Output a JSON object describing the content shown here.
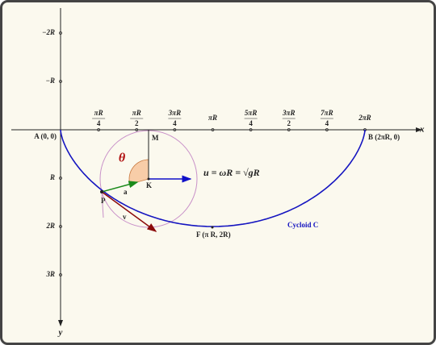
{
  "x_axis": {
    "label": "x",
    "ticks": [
      {
        "num": "πR",
        "den": "4"
      },
      {
        "num": "πR",
        "den": "2"
      },
      {
        "num": "3πR",
        "den": "4"
      },
      {
        "num": "πR"
      },
      {
        "num": "5πR",
        "den": "4"
      },
      {
        "num": "3πR",
        "den": "2"
      },
      {
        "num": "7πR",
        "den": "4"
      },
      {
        "num": "2πR"
      }
    ]
  },
  "y_axis": {
    "label": "y",
    "ticks": [
      "−2R",
      "−R",
      "R",
      "2R",
      "3R"
    ]
  },
  "points": {
    "A": "A (0, 0)",
    "B": "B (2πR, 0)",
    "M": "M",
    "K": "K",
    "P": "P",
    "F": "F (π R, 2R)"
  },
  "vectors": {
    "a": "a",
    "v": "v",
    "u": "u = ωR = √gR"
  },
  "angle": "θ",
  "curve_label": "Cycloid C"
}
